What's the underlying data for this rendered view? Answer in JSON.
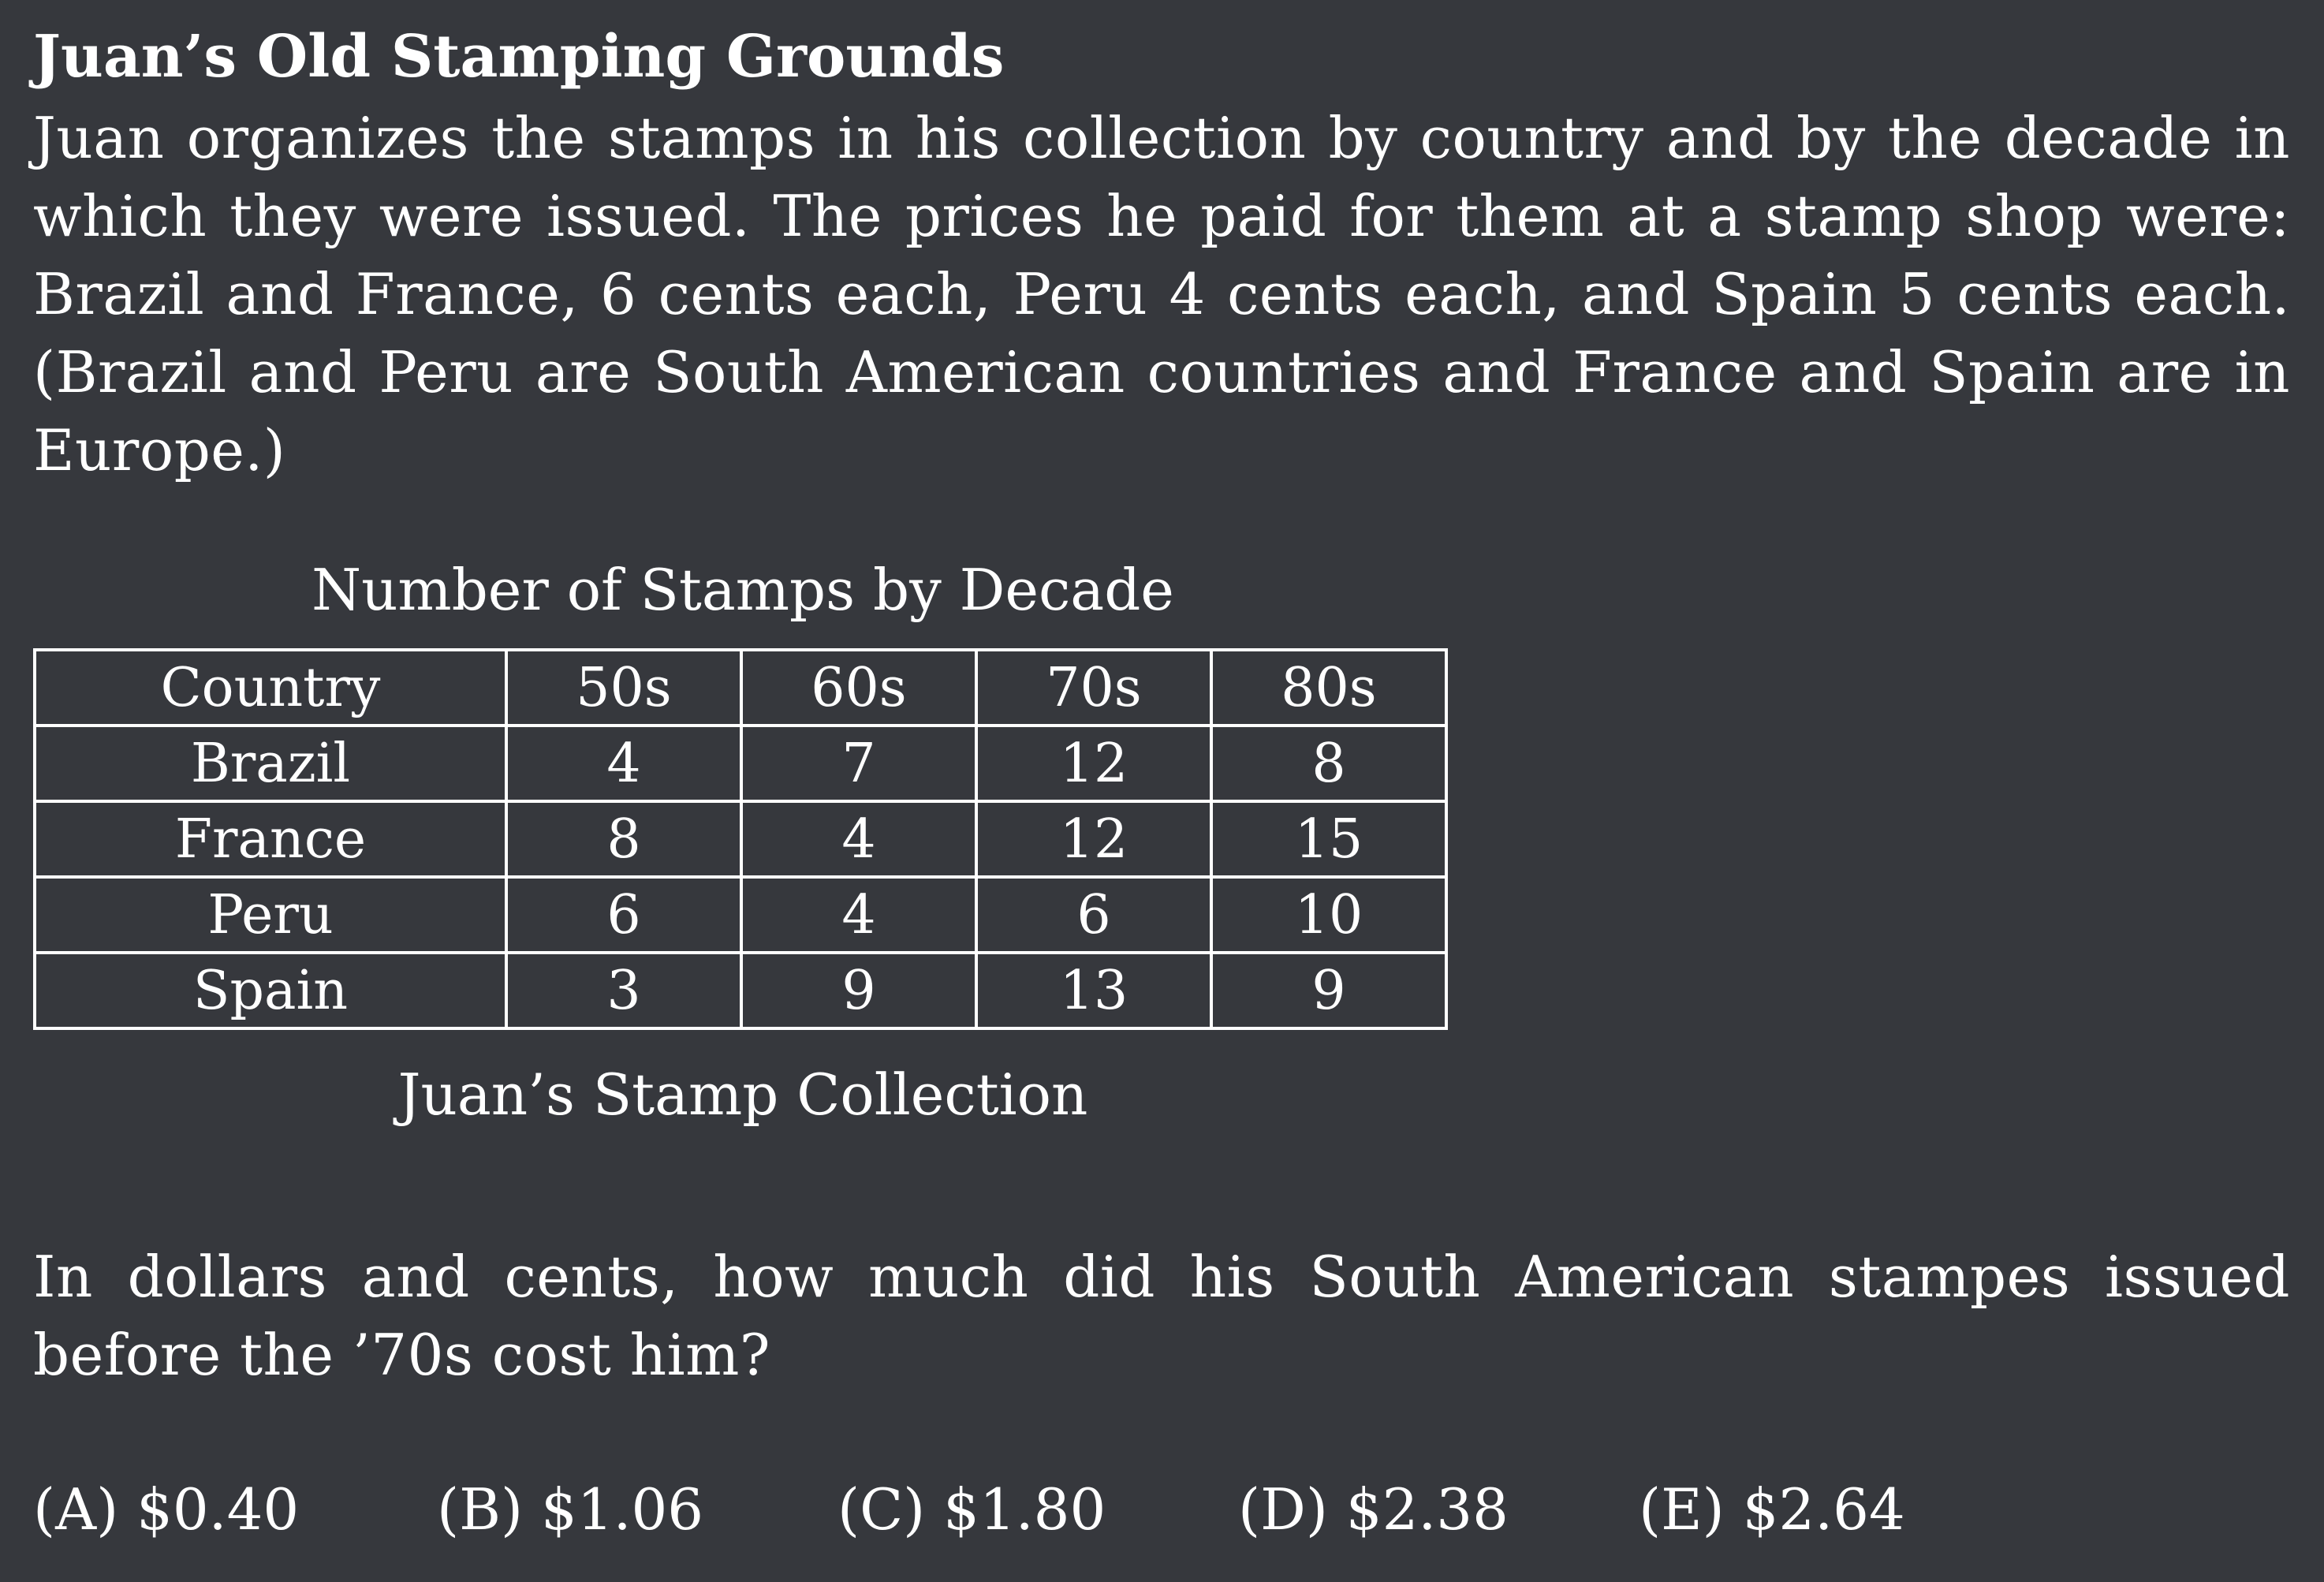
{
  "title": "Juan’s Old Stamping Grounds",
  "intro": "Juan organizes the stamps in his collection by country and by the decade in which they were issued.  The prices he paid for them at a stamp shop were: Brazil and France, 6 cents each, Peru 4 cents each, and Spain 5 cents each. (Brazil and Peru are South American countries and France and Spain are in Europe.)",
  "table": {
    "caption_top": "Number of Stamps by Decade",
    "caption_bottom": "Juan’s Stamp Collection",
    "headers": [
      "Country",
      "50s",
      "60s",
      "70s",
      "80s"
    ],
    "rows": [
      [
        "Brazil",
        "4",
        "7",
        "12",
        "8"
      ],
      [
        "France",
        "8",
        "4",
        "12",
        "15"
      ],
      [
        "Peru",
        "6",
        "4",
        "6",
        "10"
      ],
      [
        "Spain",
        "3",
        "9",
        "13",
        "9"
      ]
    ]
  },
  "question": "In dollars and cents, how much did his South American stampes issued before the ’70s cost him?",
  "choices": [
    "(A) $0.40",
    "(B) $1.06",
    "(C) $1.80",
    "(D) $2.38",
    "(E) $2.64"
  ]
}
